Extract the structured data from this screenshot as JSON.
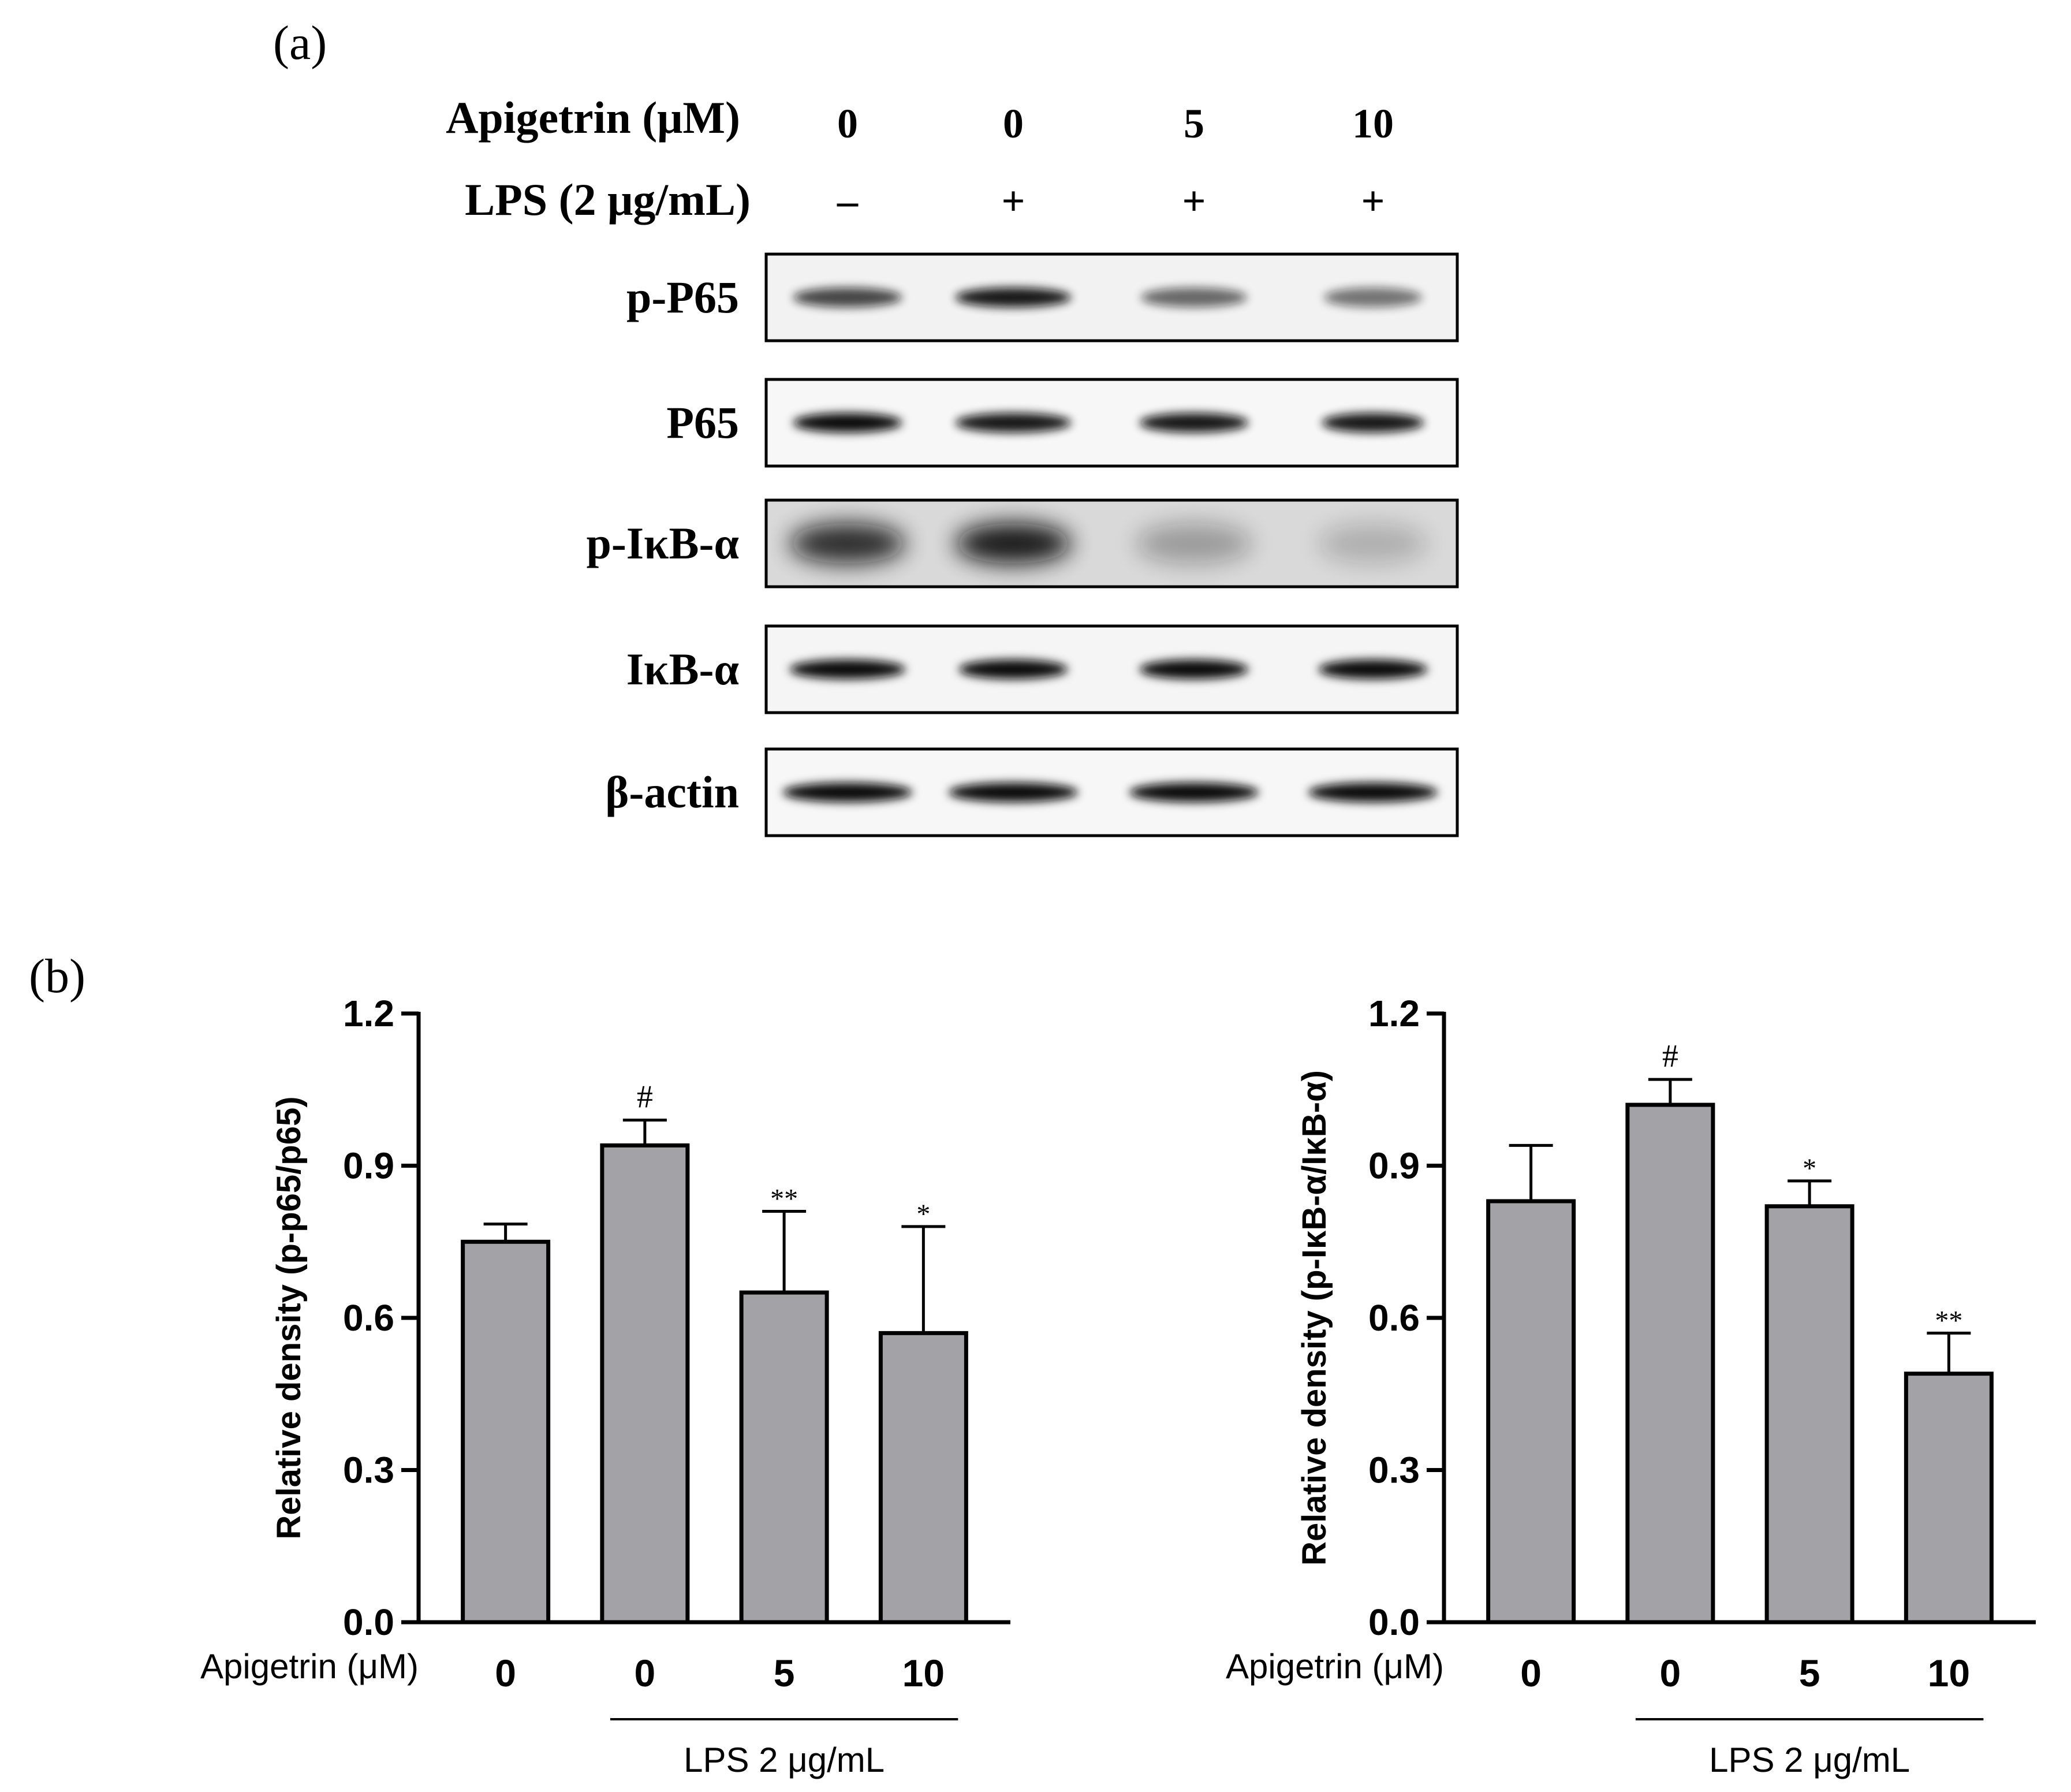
{
  "panel_a": {
    "label": "(a)",
    "apigetrin_label": "Apigetrin (μM)",
    "apigetrin_doses": [
      "0",
      "0",
      "5",
      "10"
    ],
    "lps_label": "LPS (2 μg/mL)",
    "lps_signs": [
      "–",
      "+",
      "+",
      "+"
    ],
    "blots": [
      {
        "name": "p-P65",
        "band_intensity": [
          0.75,
          0.95,
          0.6,
          0.55
        ],
        "band_width": [
          0.8,
          0.85,
          0.78,
          0.72
        ],
        "background": 0.05
      },
      {
        "name": "P65",
        "band_intensity": [
          1.0,
          0.95,
          0.95,
          0.95
        ],
        "band_width": [
          0.8,
          0.85,
          0.8,
          0.75
        ],
        "background": 0.03
      },
      {
        "name": "p-IκB-α",
        "band_intensity": [
          0.85,
          0.95,
          0.3,
          0.2
        ],
        "band_width": [
          0.85,
          0.85,
          0.85,
          0.8
        ],
        "background": 0.15
      },
      {
        "name": "IκB-α",
        "band_intensity": [
          1.0,
          1.0,
          1.0,
          1.0
        ],
        "band_width": [
          0.85,
          0.8,
          0.8,
          0.8
        ],
        "background": 0.04
      },
      {
        "name": "β-actin",
        "band_intensity": [
          1.0,
          1.0,
          1.0,
          1.0
        ],
        "band_width": [
          0.95,
          0.95,
          0.95,
          0.95
        ],
        "background": 0.03
      }
    ]
  },
  "panel_b": {
    "label": "(b)"
  },
  "colors": {
    "bar_fill": "#a3a3a7",
    "ink": "#000000",
    "band": "#111111"
  },
  "chart_data": [
    {
      "type": "bar",
      "ylabel": "Relative density (p-p65/p65)",
      "xlabel": "Apigetrin (μM)",
      "categories": [
        "0",
        "0",
        "5",
        "10"
      ],
      "values": [
        0.75,
        0.94,
        0.65,
        0.57
      ],
      "errors": [
        0.035,
        0.05,
        0.16,
        0.21
      ],
      "annotations": [
        "",
        "#",
        "**",
        "*"
      ],
      "ylim": [
        0,
        1.2
      ],
      "yticks": [
        "0.0",
        "0.3",
        "0.6",
        "0.9",
        "1.2"
      ],
      "group_label": "LPS 2 μg/mL"
    },
    {
      "type": "bar",
      "ylabel": "Relative density (p-IκB-α/IκB-α)",
      "xlabel": "Apigetrin (μM)",
      "categories": [
        "0",
        "0",
        "5",
        "10"
      ],
      "values": [
        0.83,
        1.02,
        0.82,
        0.49
      ],
      "errors": [
        0.11,
        0.05,
        0.05,
        0.08
      ],
      "annotations": [
        "",
        "#",
        "*",
        "**"
      ],
      "ylim": [
        0,
        1.2
      ],
      "yticks": [
        "0.0",
        "0.3",
        "0.6",
        "0.9",
        "1.2"
      ],
      "group_label": "LPS 2 μg/mL"
    }
  ]
}
